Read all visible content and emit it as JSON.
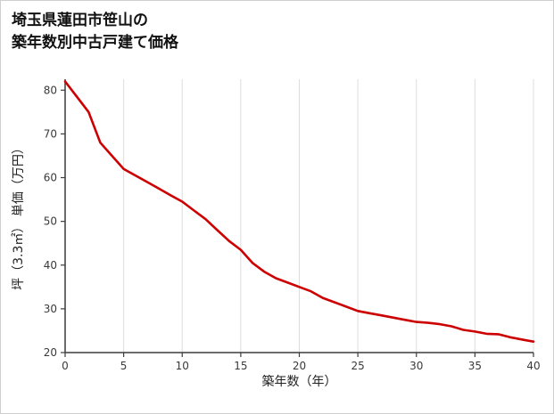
{
  "title": {
    "line1": "埼玉県蓮田市笹山の",
    "line2": "築年数別中古戸建て価格"
  },
  "chart_data": {
    "type": "line",
    "title": "埼玉県蓮田市笹山の築年数別中古戸建て価格",
    "xlabel": "築年数（年）",
    "ylabel": "坪（3.3㎡） 単価（万円）",
    "xlim": [
      0,
      40
    ],
    "ylim": [
      20,
      82.5
    ],
    "x_ticks": [
      0,
      5,
      10,
      15,
      20,
      25,
      30,
      35,
      40
    ],
    "y_ticks": [
      20,
      30,
      40,
      50,
      60,
      70,
      80
    ],
    "grid": "vertical",
    "legend": "none",
    "line_color": "#cc0000",
    "axis_color": "#3c3c3c",
    "grid_color": "#dddddd",
    "x": [
      0,
      1,
      2,
      3,
      4,
      5,
      6,
      7,
      8,
      9,
      10,
      11,
      12,
      13,
      14,
      15,
      16,
      17,
      18,
      19,
      20,
      21,
      22,
      23,
      24,
      25,
      26,
      27,
      28,
      29,
      30,
      31,
      32,
      33,
      34,
      35,
      36,
      37,
      38,
      39,
      40
    ],
    "y": [
      82,
      78.5,
      75,
      68,
      65,
      62,
      60.5,
      59,
      57.5,
      56,
      54.5,
      52.5,
      50.5,
      48,
      45.5,
      43.5,
      40.5,
      38.5,
      37,
      36,
      35,
      34,
      32.5,
      31.5,
      30.5,
      29.5,
      29,
      28.5,
      28,
      27.5,
      27,
      26.8,
      26.5,
      26,
      25.2,
      24.8,
      24.3,
      24.2,
      23.5,
      23,
      22.5
    ]
  }
}
